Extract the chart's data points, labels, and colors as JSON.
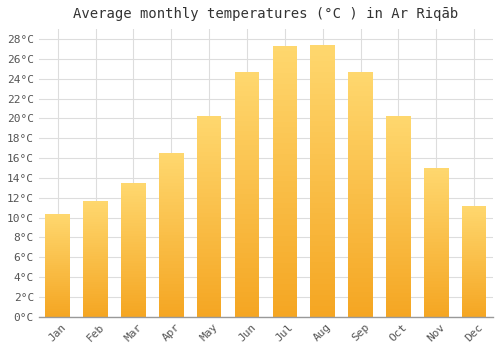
{
  "title": "Average monthly temperatures (°C ) in Ar Riqāb",
  "months": [
    "Jan",
    "Feb",
    "Mar",
    "Apr",
    "May",
    "Jun",
    "Jul",
    "Aug",
    "Sep",
    "Oct",
    "Nov",
    "Dec"
  ],
  "values": [
    10.4,
    11.7,
    13.5,
    16.5,
    20.2,
    24.7,
    27.3,
    27.4,
    24.7,
    20.2,
    15.0,
    11.2
  ],
  "bar_color_bottom": "#F5A623",
  "bar_color_top": "#FFD870",
  "ylim": [
    0,
    29
  ],
  "yticks": [
    0,
    2,
    4,
    6,
    8,
    10,
    12,
    14,
    16,
    18,
    20,
    22,
    24,
    26,
    28
  ],
  "background_color": "#ffffff",
  "grid_color": "#dddddd",
  "title_fontsize": 10,
  "tick_fontsize": 8,
  "font_family": "monospace"
}
